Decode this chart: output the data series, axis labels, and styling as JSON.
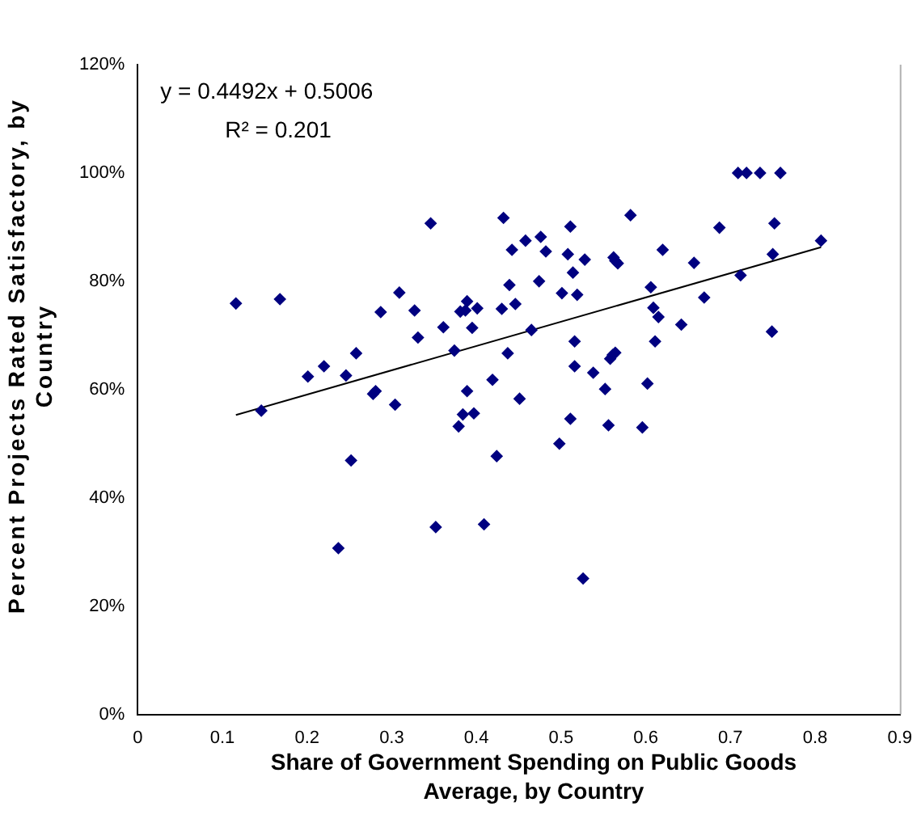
{
  "chart_data": {
    "type": "scatter",
    "xlabel": "Share of Government Spending on Public Goods Average, by Country",
    "ylabel": "Percent Projects Rated Satisfactory, by Country",
    "annotations": [
      "y = 0.4492x + 0.5006",
      "R² = 0.201"
    ],
    "xlim": [
      0,
      0.9
    ],
    "xticks": [
      0,
      0.1,
      0.2,
      0.3,
      0.4,
      0.5,
      0.6,
      0.7,
      0.8,
      0.9
    ],
    "ylim": [
      0,
      120
    ],
    "yticks": [
      {
        "value": 0,
        "label": "0%"
      },
      {
        "value": 20,
        "label": "20%"
      },
      {
        "value": 40,
        "label": "40%"
      },
      {
        "value": 60,
        "label": "60%"
      },
      {
        "value": 80,
        "label": "80%"
      },
      {
        "value": 100,
        "label": "100%"
      },
      {
        "value": 120,
        "label": "120%"
      }
    ],
    "grid": false,
    "legend": false,
    "series": [
      {
        "color": "#000080",
        "marker": "diamond",
        "x": [
          0.116,
          0.168,
          0.146,
          0.201,
          0.22,
          0.246,
          0.258,
          0.252,
          0.237,
          0.278,
          0.281,
          0.287,
          0.304,
          0.309,
          0.327,
          0.331,
          0.346,
          0.352,
          0.361,
          0.374,
          0.379,
          0.381,
          0.384,
          0.387,
          0.389,
          0.389,
          0.395,
          0.397,
          0.401,
          0.409,
          0.419,
          0.424,
          0.43,
          0.432,
          0.437,
          0.439,
          0.442,
          0.446,
          0.451,
          0.458,
          0.465,
          0.476,
          0.474,
          0.482,
          0.501,
          0.498,
          0.508,
          0.511,
          0.514,
          0.519,
          0.528,
          0.516,
          0.516,
          0.511,
          0.526,
          0.538,
          0.552,
          0.556,
          0.558,
          0.561,
          0.564,
          0.562,
          0.564,
          0.567,
          0.582,
          0.596,
          0.602,
          0.606,
          0.609,
          0.615,
          0.611,
          0.62,
          0.642,
          0.657,
          0.669,
          0.687,
          0.709,
          0.719,
          0.735,
          0.759,
          0.712,
          0.752,
          0.75,
          0.749,
          0.807
        ],
        "values": [
          75.9,
          76.7,
          56.1,
          62.4,
          64.3,
          62.6,
          66.7,
          46.9,
          30.7,
          59.2,
          59.7,
          74.3,
          57.2,
          77.9,
          74.6,
          69.6,
          90.7,
          34.6,
          71.5,
          67.2,
          53.2,
          74.4,
          55.4,
          74.6,
          76.3,
          59.7,
          71.4,
          55.6,
          75.0,
          35.1,
          61.8,
          47.7,
          74.9,
          91.7,
          66.7,
          79.3,
          85.8,
          75.8,
          58.3,
          87.5,
          71.0,
          88.2,
          80.0,
          85.5,
          77.8,
          50.0,
          85.0,
          90.1,
          81.6,
          77.5,
          84.0,
          68.9,
          64.3,
          54.6,
          25.1,
          63.1,
          60.1,
          53.4,
          65.7,
          66.4,
          66.8,
          84.4,
          83.8,
          83.3,
          92.2,
          53.0,
          61.1,
          78.9,
          75.1,
          73.4,
          68.9,
          85.8,
          72.0,
          83.4,
          77.0,
          89.9,
          100,
          100,
          100,
          100,
          81.1,
          90.7,
          85.0,
          70.7,
          87.5
        ]
      },
      {
        "type": "line",
        "color": "#000000",
        "marker": "none",
        "line_style": "solid",
        "x": [
          0.116,
          0.807
        ],
        "values": [
          55.3,
          86.3
        ]
      }
    ]
  }
}
